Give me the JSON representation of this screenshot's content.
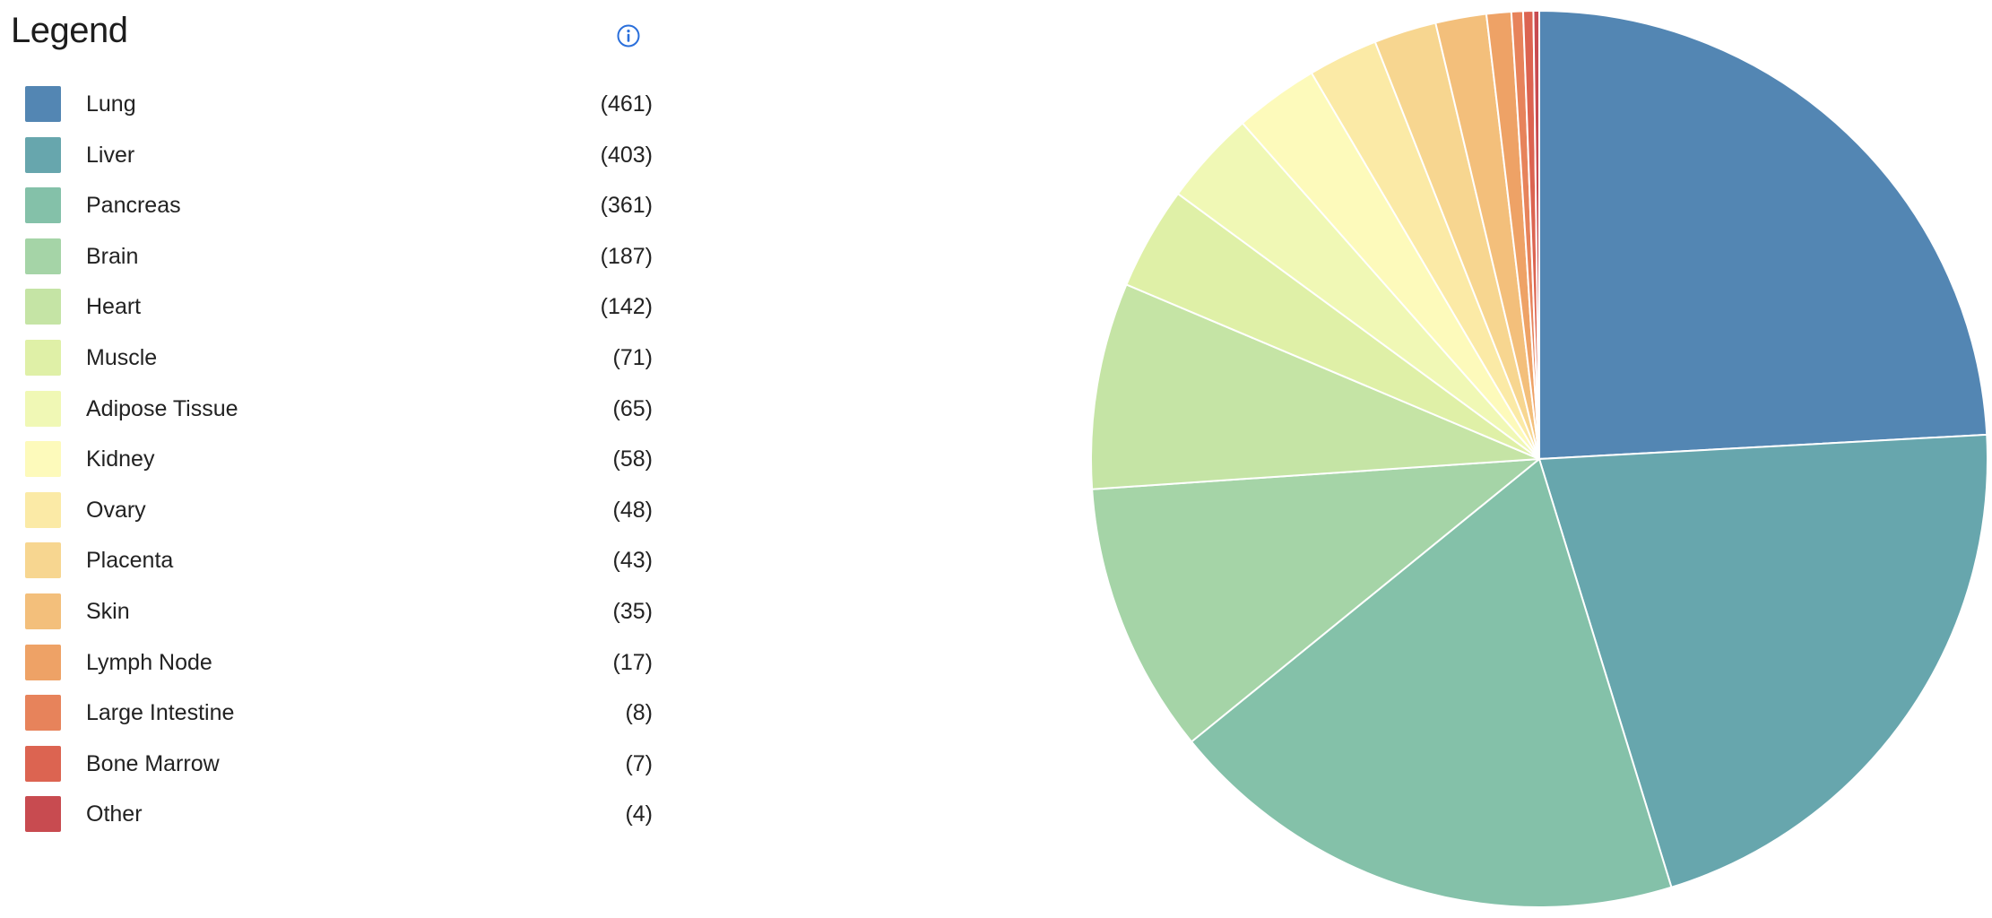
{
  "legend": {
    "title": "Legend",
    "info_icon": "info-circle-icon"
  },
  "colors": {
    "accent": "#2a6fdb",
    "slice_stroke": "#ffffff"
  },
  "chart_data": {
    "type": "pie",
    "title": "",
    "legend_position": "left",
    "start_angle": "12 o'clock",
    "direction": "clockwise",
    "slices": [
      {
        "label": "Lung",
        "value": 461,
        "count_label": "(461)",
        "color": "#5386b3"
      },
      {
        "label": "Liver",
        "value": 403,
        "count_label": "(403)",
        "color": "#67a6ad"
      },
      {
        "label": "Pancreas",
        "value": 361,
        "count_label": "(361)",
        "color": "#84c1a9"
      },
      {
        "label": "Brain",
        "value": 187,
        "count_label": "(187)",
        "color": "#a5d4a7"
      },
      {
        "label": "Heart",
        "value": 142,
        "count_label": "(142)",
        "color": "#c5e4a5"
      },
      {
        "label": "Muscle",
        "value": 71,
        "count_label": "(71)",
        "color": "#dff0a7"
      },
      {
        "label": "Adipose Tissue",
        "value": 65,
        "count_label": "(65)",
        "color": "#f0f8b5"
      },
      {
        "label": "Kidney",
        "value": 58,
        "count_label": "(58)",
        "color": "#fdfabb"
      },
      {
        "label": "Ovary",
        "value": 48,
        "count_label": "(48)",
        "color": "#fbeaa6"
      },
      {
        "label": "Placenta",
        "value": 43,
        "count_label": "(43)",
        "color": "#f7d690"
      },
      {
        "label": "Skin",
        "value": 35,
        "count_label": "(35)",
        "color": "#f3bf7b"
      },
      {
        "label": "Lymph Node",
        "value": 17,
        "count_label": "(17)",
        "color": "#eea266"
      },
      {
        "label": "Large Intestine",
        "value": 8,
        "count_label": "(8)",
        "color": "#e7835b"
      },
      {
        "label": "Bone Marrow",
        "value": 7,
        "count_label": "(7)",
        "color": "#dc6451"
      },
      {
        "label": "Other",
        "value": 4,
        "count_label": "(4)",
        "color": "#c84b50"
      }
    ]
  }
}
